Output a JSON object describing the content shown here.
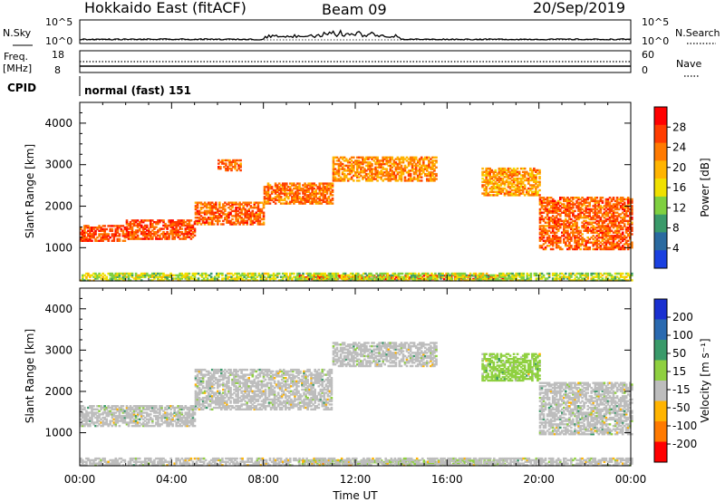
{
  "header": {
    "radar": "Hokkaido East (fitACF)",
    "beam": "Beam 09",
    "date": "20/Sep/2019"
  },
  "noise_panel": {
    "left_label": "N.Sky",
    "right_label": "N.Search",
    "ticks": [
      "10^5",
      "10^0"
    ]
  },
  "freq_panel": {
    "left_label_1": "Freq.",
    "left_label_2": "[MHz]",
    "left_ticks": [
      "18",
      "8"
    ],
    "right_label": "Nave",
    "right_ticks": [
      "60",
      "0"
    ]
  },
  "cpid_panel": {
    "left_label": "CPID",
    "mode": "normal (fast) 151"
  },
  "axes": {
    "ylabel": "Slant Range [km]",
    "xlabel": "Time UT",
    "y_ticks": [
      "4000",
      "3000",
      "2000",
      "1000"
    ],
    "x_ticks": [
      "00:00",
      "04:00",
      "08:00",
      "12:00",
      "16:00",
      "20:00",
      "00:00"
    ]
  },
  "power_colorbar": {
    "label": "Power [dB]",
    "ticks": [
      "28",
      "24",
      "20",
      "16",
      "12",
      "8",
      "4"
    ],
    "colors": [
      "#ff0000",
      "#ff3c00",
      "#ff7a00",
      "#ffb400",
      "#f0e000",
      "#7fd040",
      "#3a9a6a",
      "#2a6aa0",
      "#1a40e0"
    ]
  },
  "velocity_colorbar": {
    "label": "Velocity [m s⁻¹]",
    "ticks": [
      "200",
      "100",
      "50",
      "15",
      "-15",
      "-50",
      "-100",
      "-200"
    ],
    "colors": [
      "#1a30d0",
      "#2a6ab0",
      "#3a9a6a",
      "#8fd040",
      "#bdbdbd",
      "#ffb400",
      "#ff7a00",
      "#ff0000"
    ]
  },
  "chart_data": [
    {
      "type": "heatmap",
      "name": "Power",
      "xlabel": "Time UT",
      "ylabel": "Slant Range [km]",
      "xlim": [
        0,
        24
      ],
      "ylim": [
        200,
        4500
      ],
      "clim": [
        0,
        32
      ],
      "echo_bands": [
        {
          "t0": 0,
          "t1": 2,
          "r0": 1150,
          "r1": 1550,
          "value": 27
        },
        {
          "t0": 2,
          "t1": 5,
          "r0": 1200,
          "r1": 1650,
          "value": 27
        },
        {
          "t0": 5,
          "t1": 8,
          "r0": 1550,
          "r1": 2100,
          "value": 26
        },
        {
          "t0": 8,
          "t1": 11,
          "r0": 2050,
          "r1": 2550,
          "value": 25
        },
        {
          "t0": 11,
          "t1": 15.5,
          "r0": 2600,
          "r1": 3200,
          "value": 23
        },
        {
          "t0": 6,
          "t1": 7,
          "r0": 2850,
          "r1": 3100,
          "value": 26
        },
        {
          "t0": 17.5,
          "t1": 20,
          "r0": 2250,
          "r1": 2900,
          "value": 22
        },
        {
          "t0": 20,
          "t1": 24,
          "r0": 950,
          "r1": 2200,
          "value": 26
        },
        {
          "t0": 9.5,
          "t1": 18.5,
          "r0": 230,
          "r1": 330,
          "value": 29
        },
        {
          "t0": 0,
          "t1": 24,
          "r0": 200,
          "r1": 380,
          "value": 14
        }
      ]
    },
    {
      "type": "heatmap",
      "name": "Velocity",
      "xlabel": "Time UT",
      "ylabel": "Slant Range [km]",
      "xlim": [
        0,
        24
      ],
      "ylim": [
        200,
        4500
      ],
      "clim": [
        -250,
        250
      ],
      "echo_bands": [
        {
          "t0": 0,
          "t1": 5,
          "r0": 1150,
          "r1": 1650,
          "value": 0
        },
        {
          "t0": 5,
          "t1": 11,
          "r0": 1550,
          "r1": 2550,
          "value": 0
        },
        {
          "t0": 11,
          "t1": 15.5,
          "r0": 2600,
          "r1": 3200,
          "value": 0
        },
        {
          "t0": 17.5,
          "t1": 20,
          "r0": 2250,
          "r1": 2900,
          "value": 20
        },
        {
          "t0": 20,
          "t1": 24,
          "r0": 950,
          "r1": 2200,
          "value": 0
        },
        {
          "t0": 9.5,
          "t1": 18.5,
          "r0": 230,
          "r1": 330,
          "value": 30
        },
        {
          "t0": 0,
          "t1": 24,
          "r0": 200,
          "r1": 380,
          "value": -30
        }
      ]
    }
  ]
}
